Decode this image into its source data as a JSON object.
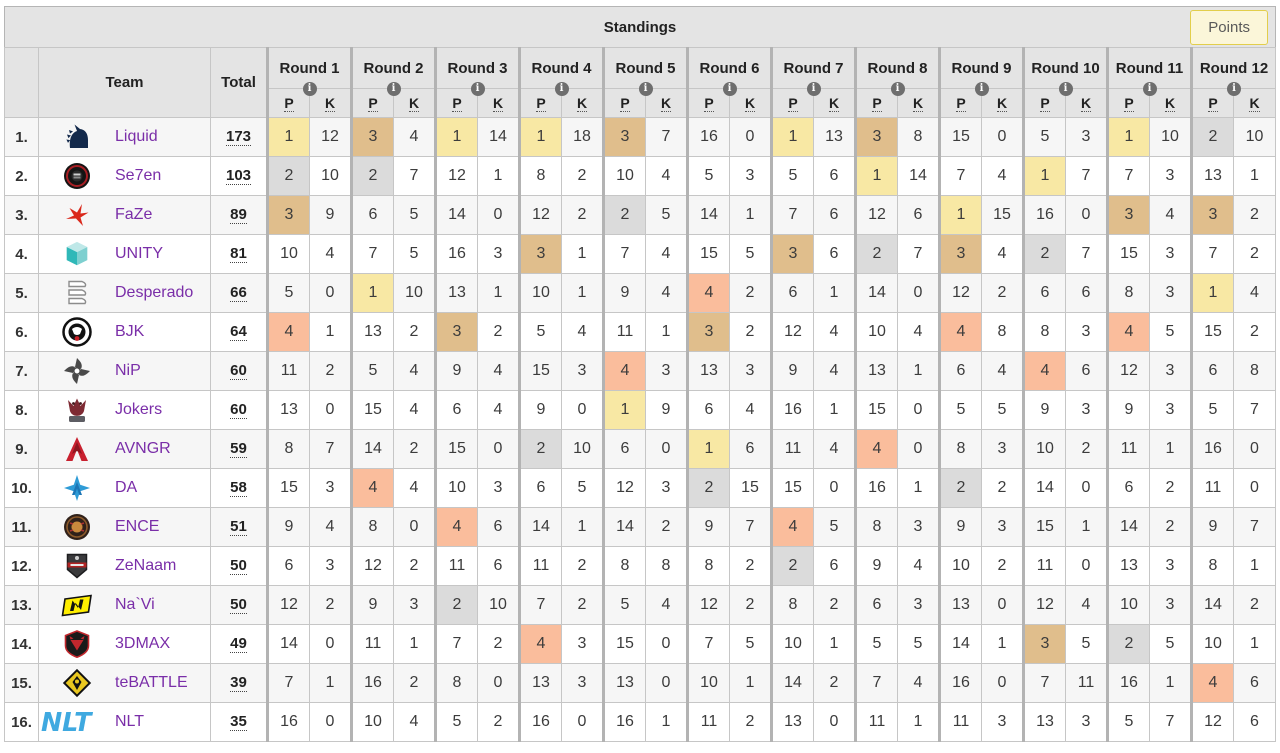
{
  "header": {
    "title": "Standings",
    "points_button_label": "Points"
  },
  "icons": {
    "info": "i"
  },
  "table": {
    "team_header": "Team",
    "total_header": "Total",
    "p_header": "P",
    "k_header": "K",
    "rounds": [
      "Round 1",
      "Round 2",
      "Round 3",
      "Round 4",
      "Round 5",
      "Round 6",
      "Round 7",
      "Round 8",
      "Round 9",
      "Round 10",
      "Round 11",
      "Round 12"
    ]
  },
  "placement_colors": {
    "1": "#f8e8a4",
    "2": "#dbdbdb",
    "3": "#e0be8c",
    "4": "#fabd9c"
  },
  "standings": [
    {
      "rank": "1.",
      "team": "Liquid",
      "logo": "liquid",
      "total": "173",
      "rounds": [
        [
          1,
          12
        ],
        [
          3,
          4
        ],
        [
          1,
          14
        ],
        [
          1,
          18
        ],
        [
          3,
          7
        ],
        [
          16,
          0
        ],
        [
          1,
          13
        ],
        [
          3,
          8
        ],
        [
          15,
          0
        ],
        [
          5,
          3
        ],
        [
          1,
          10
        ],
        [
          2,
          10
        ]
      ]
    },
    {
      "rank": "2.",
      "team": "Se7en",
      "logo": "se7en",
      "total": "103",
      "rounds": [
        [
          2,
          10
        ],
        [
          2,
          7
        ],
        [
          12,
          1
        ],
        [
          8,
          2
        ],
        [
          10,
          4
        ],
        [
          5,
          3
        ],
        [
          5,
          6
        ],
        [
          1,
          14
        ],
        [
          7,
          4
        ],
        [
          1,
          7
        ],
        [
          7,
          3
        ],
        [
          13,
          1
        ]
      ]
    },
    {
      "rank": "3.",
      "team": "FaZe",
      "logo": "faze",
      "total": "89",
      "rounds": [
        [
          3,
          9
        ],
        [
          6,
          5
        ],
        [
          14,
          0
        ],
        [
          12,
          2
        ],
        [
          2,
          5
        ],
        [
          14,
          1
        ],
        [
          7,
          6
        ],
        [
          12,
          6
        ],
        [
          1,
          15
        ],
        [
          16,
          0
        ],
        [
          3,
          4
        ],
        [
          3,
          2
        ]
      ]
    },
    {
      "rank": "4.",
      "team": "UNITY",
      "logo": "unity",
      "total": "81",
      "rounds": [
        [
          10,
          4
        ],
        [
          7,
          5
        ],
        [
          16,
          3
        ],
        [
          3,
          1
        ],
        [
          7,
          4
        ],
        [
          15,
          5
        ],
        [
          3,
          6
        ],
        [
          2,
          7
        ],
        [
          3,
          4
        ],
        [
          2,
          7
        ],
        [
          15,
          3
        ],
        [
          7,
          2
        ]
      ]
    },
    {
      "rank": "5.",
      "team": "Desperado",
      "logo": "desperado",
      "total": "66",
      "rounds": [
        [
          5,
          0
        ],
        [
          1,
          10
        ],
        [
          13,
          1
        ],
        [
          10,
          1
        ],
        [
          9,
          4
        ],
        [
          4,
          2
        ],
        [
          6,
          1
        ],
        [
          14,
          0
        ],
        [
          12,
          2
        ],
        [
          6,
          6
        ],
        [
          8,
          3
        ],
        [
          1,
          4
        ]
      ]
    },
    {
      "rank": "6.",
      "team": "BJK",
      "logo": "bjk",
      "total": "64",
      "rounds": [
        [
          4,
          1
        ],
        [
          13,
          2
        ],
        [
          3,
          2
        ],
        [
          5,
          4
        ],
        [
          11,
          1
        ],
        [
          3,
          2
        ],
        [
          12,
          4
        ],
        [
          10,
          4
        ],
        [
          4,
          8
        ],
        [
          8,
          3
        ],
        [
          4,
          5
        ],
        [
          15,
          2
        ]
      ]
    },
    {
      "rank": "7.",
      "team": "NiP",
      "logo": "nip",
      "total": "60",
      "rounds": [
        [
          11,
          2
        ],
        [
          5,
          4
        ],
        [
          9,
          4
        ],
        [
          15,
          3
        ],
        [
          4,
          3
        ],
        [
          13,
          3
        ],
        [
          9,
          4
        ],
        [
          13,
          1
        ],
        [
          6,
          4
        ],
        [
          4,
          6
        ],
        [
          12,
          3
        ],
        [
          6,
          8
        ]
      ]
    },
    {
      "rank": "8.",
      "team": "Jokers",
      "logo": "jokers",
      "total": "60",
      "rounds": [
        [
          13,
          0
        ],
        [
          15,
          4
        ],
        [
          6,
          4
        ],
        [
          9,
          0
        ],
        [
          1,
          9
        ],
        [
          6,
          4
        ],
        [
          16,
          1
        ],
        [
          15,
          0
        ],
        [
          5,
          5
        ],
        [
          9,
          3
        ],
        [
          9,
          3
        ],
        [
          5,
          7
        ]
      ]
    },
    {
      "rank": "9.",
      "team": "AVNGR",
      "logo": "avngr",
      "total": "59",
      "rounds": [
        [
          8,
          7
        ],
        [
          14,
          2
        ],
        [
          15,
          0
        ],
        [
          2,
          10
        ],
        [
          6,
          0
        ],
        [
          1,
          6
        ],
        [
          11,
          4
        ],
        [
          4,
          0
        ],
        [
          8,
          3
        ],
        [
          10,
          2
        ],
        [
          11,
          1
        ],
        [
          16,
          0
        ]
      ]
    },
    {
      "rank": "10.",
      "team": "DA",
      "logo": "da",
      "total": "58",
      "rounds": [
        [
          15,
          3
        ],
        [
          4,
          4
        ],
        [
          10,
          3
        ],
        [
          6,
          5
        ],
        [
          12,
          3
        ],
        [
          2,
          15
        ],
        [
          15,
          0
        ],
        [
          16,
          1
        ],
        [
          2,
          2
        ],
        [
          14,
          0
        ],
        [
          6,
          2
        ],
        [
          11,
          0
        ]
      ]
    },
    {
      "rank": "11.",
      "team": "ENCE",
      "logo": "ence",
      "total": "51",
      "rounds": [
        [
          9,
          4
        ],
        [
          8,
          0
        ],
        [
          4,
          6
        ],
        [
          14,
          1
        ],
        [
          14,
          2
        ],
        [
          9,
          7
        ],
        [
          4,
          5
        ],
        [
          8,
          3
        ],
        [
          9,
          3
        ],
        [
          15,
          1
        ],
        [
          14,
          2
        ],
        [
          9,
          7
        ]
      ]
    },
    {
      "rank": "12.",
      "team": "ZeNaam",
      "logo": "zenaam",
      "total": "50",
      "rounds": [
        [
          6,
          3
        ],
        [
          12,
          2
        ],
        [
          11,
          6
        ],
        [
          11,
          2
        ],
        [
          8,
          8
        ],
        [
          8,
          2
        ],
        [
          2,
          6
        ],
        [
          9,
          4
        ],
        [
          10,
          2
        ],
        [
          11,
          0
        ],
        [
          13,
          3
        ],
        [
          8,
          1
        ]
      ]
    },
    {
      "rank": "13.",
      "team": "Na`Vi",
      "logo": "navi",
      "total": "50",
      "rounds": [
        [
          12,
          2
        ],
        [
          9,
          3
        ],
        [
          2,
          10
        ],
        [
          7,
          2
        ],
        [
          5,
          4
        ],
        [
          12,
          2
        ],
        [
          8,
          2
        ],
        [
          6,
          3
        ],
        [
          13,
          0
        ],
        [
          12,
          4
        ],
        [
          10,
          3
        ],
        [
          14,
          2
        ]
      ]
    },
    {
      "rank": "14.",
      "team": "3DMAX",
      "logo": "threedmax",
      "total": "49",
      "rounds": [
        [
          14,
          0
        ],
        [
          11,
          1
        ],
        [
          7,
          2
        ],
        [
          4,
          3
        ],
        [
          15,
          0
        ],
        [
          7,
          5
        ],
        [
          10,
          1
        ],
        [
          5,
          5
        ],
        [
          14,
          1
        ],
        [
          3,
          5
        ],
        [
          2,
          5
        ],
        [
          10,
          1
        ]
      ]
    },
    {
      "rank": "15.",
      "team": "teBATTLE",
      "logo": "tebattle",
      "total": "39",
      "rounds": [
        [
          7,
          1
        ],
        [
          16,
          2
        ],
        [
          8,
          0
        ],
        [
          13,
          3
        ],
        [
          13,
          0
        ],
        [
          10,
          1
        ],
        [
          14,
          2
        ],
        [
          7,
          4
        ],
        [
          16,
          0
        ],
        [
          7,
          11
        ],
        [
          16,
          1
        ],
        [
          4,
          6
        ]
      ]
    },
    {
      "rank": "16.",
      "team": "NLT",
      "logo": "nlt",
      "total": "35",
      "rounds": [
        [
          16,
          0
        ],
        [
          10,
          4
        ],
        [
          5,
          2
        ],
        [
          16,
          0
        ],
        [
          16,
          1
        ],
        [
          11,
          2
        ],
        [
          13,
          0
        ],
        [
          11,
          1
        ],
        [
          11,
          3
        ],
        [
          13,
          3
        ],
        [
          5,
          7
        ],
        [
          12,
          6
        ]
      ]
    }
  ]
}
